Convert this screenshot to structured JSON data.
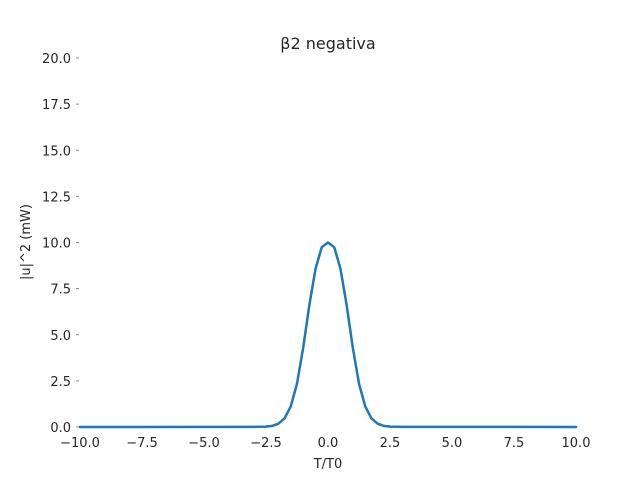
{
  "chart_data": {
    "type": "line",
    "title": "β2 negativa",
    "xlabel": "T/T0",
    "ylabel": "|u|^2 (mW)",
    "xlim": [
      -10,
      10
    ],
    "ylim": [
      0,
      20
    ],
    "x_ticks": [
      "−10.0",
      "−7.5",
      "−5.0",
      "−2.5",
      "0.0",
      "2.5",
      "5.0",
      "7.5",
      "10.0"
    ],
    "y_ticks": [
      "0.0",
      "2.5",
      "5.0",
      "7.5",
      "10.0",
      "12.5",
      "15.0",
      "17.5",
      "20.0"
    ],
    "x_tick_values": [
      -10,
      -7.5,
      -5,
      -2.5,
      0,
      2.5,
      5,
      7.5,
      10
    ],
    "y_tick_values": [
      0,
      2.5,
      5,
      7.5,
      10,
      12.5,
      15,
      17.5,
      20
    ],
    "grid": false,
    "series": [
      {
        "color": "#1f77b4",
        "x": [
          -10,
          -3,
          -2.5,
          -2.25,
          -2,
          -1.75,
          -1.5,
          -1.25,
          -1,
          -0.75,
          -0.5,
          -0.25,
          0,
          0.25,
          0.5,
          0.75,
          1,
          1.25,
          1.5,
          1.75,
          2,
          2.25,
          2.5,
          3,
          10
        ],
        "y": [
          0,
          0.01,
          0.02,
          0.06,
          0.18,
          0.47,
          1.12,
          2.35,
          4.3,
          6.63,
          8.59,
          9.75,
          10,
          9.75,
          8.59,
          6.63,
          4.3,
          2.35,
          1.12,
          0.47,
          0.18,
          0.06,
          0.02,
          0.01,
          0
        ]
      }
    ]
  }
}
